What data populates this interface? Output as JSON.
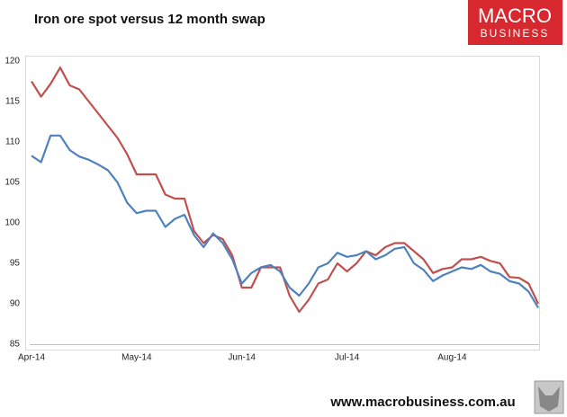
{
  "chart_data": {
    "type": "line",
    "title": "Iron ore spot versus 12 month swap",
    "categories": [
      "Apr-14",
      null,
      null,
      null,
      null,
      null,
      null,
      null,
      null,
      null,
      null,
      "May-14",
      null,
      null,
      null,
      null,
      null,
      null,
      null,
      null,
      null,
      null,
      "Jun-14",
      null,
      null,
      null,
      null,
      null,
      null,
      null,
      null,
      null,
      null,
      "Jul-14",
      null,
      null,
      null,
      null,
      null,
      null,
      null,
      null,
      null,
      null,
      "Aug-14",
      null,
      null,
      null,
      null,
      null,
      null,
      null,
      null,
      null
    ],
    "series": [
      {
        "color": "#c0504d",
        "values": [
          117.5,
          115.6,
          117.2,
          119.2,
          117.0,
          116.5,
          115.0,
          113.5,
          112.0,
          110.5,
          108.5,
          106.0,
          106.0,
          106.0,
          103.5,
          103.0,
          103.0,
          99.0,
          97.5,
          98.5,
          98.0,
          96.0,
          92.0,
          92.0,
          94.5,
          94.5,
          94.5,
          91.0,
          89.0,
          90.5,
          92.5,
          93.0,
          95.0,
          94.0,
          95.0,
          96.5,
          96.0,
          97.0,
          97.5,
          97.5,
          96.5,
          95.5,
          93.8,
          94.3,
          94.5,
          95.5,
          95.5,
          95.8,
          95.3,
          95.0,
          93.3,
          93.2,
          92.5,
          90.0
        ]
      },
      {
        "color": "#4f81bd",
        "values": [
          108.3,
          107.5,
          110.8,
          110.8,
          109.0,
          108.2,
          107.8,
          107.2,
          106.5,
          105.0,
          102.5,
          101.2,
          101.5,
          101.5,
          99.5,
          100.5,
          101.0,
          98.5,
          97.0,
          98.7,
          97.5,
          95.5,
          92.5,
          93.8,
          94.5,
          94.8,
          94.0,
          92.0,
          91.0,
          92.5,
          94.5,
          95.0,
          96.3,
          95.8,
          96.0,
          96.5,
          95.5,
          96.0,
          96.8,
          97.0,
          95.0,
          94.2,
          92.8,
          93.5,
          94.0,
          94.5,
          94.3,
          94.8,
          94.0,
          93.7,
          92.8,
          92.5,
          91.5,
          89.5
        ]
      }
    ],
    "ylim": [
      85,
      120
    ],
    "yticks": [
      85,
      90,
      95,
      100,
      105,
      110,
      115,
      120
    ],
    "grid": false
  },
  "logo": {
    "line1": "MACRO",
    "line2": "BUSINESS"
  },
  "footer": "www.macrobusiness.com.au"
}
